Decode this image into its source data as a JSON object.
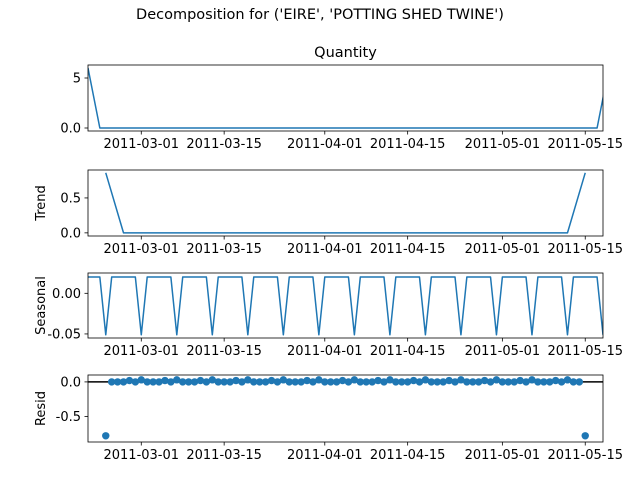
{
  "suptitle": "Decomposition for ('EIRE', 'POTTING SHED TWINE')",
  "colors": {
    "line": "#1f77b4",
    "axis": "#000000",
    "zero_line": "#000000"
  },
  "chart_data": [
    {
      "type": "line",
      "title": "Quantity",
      "ylabel": "",
      "x_dates": {
        "start": "2011-02-20",
        "end": "2011-05-18",
        "interval_days": 2
      },
      "xlim": [
        "2011-02-20",
        "2011-05-18"
      ],
      "ylim": [
        -0.3,
        6.3
      ],
      "yticks": [
        0,
        5
      ],
      "xticks": [
        "2011-03-01",
        "2011-03-15",
        "2011-04-01",
        "2011-04-15",
        "2011-05-01",
        "2011-05-15"
      ],
      "series": [
        {
          "values": [
            6,
            0,
            0,
            0,
            0,
            0,
            0,
            0,
            0,
            0,
            0,
            0,
            0,
            0,
            0,
            0,
            0,
            0,
            0,
            0,
            0,
            0,
            0,
            0,
            0,
            0,
            0,
            0,
            0,
            0,
            0,
            0,
            0,
            0,
            0,
            0,
            0,
            0,
            0,
            0,
            0,
            0,
            0,
            0,
            6
          ]
        }
      ]
    },
    {
      "type": "line",
      "title": "",
      "ylabel": "Trend",
      "x_dates": {
        "start": "2011-02-23",
        "end": "2011-05-15",
        "interval_days": 3
      },
      "xlim": [
        "2011-02-20",
        "2011-05-18"
      ],
      "ylim": [
        -0.045,
        0.9
      ],
      "yticks": [
        0.0,
        0.5
      ],
      "xticks": [
        "2011-03-01",
        "2011-03-15",
        "2011-04-01",
        "2011-04-15",
        "2011-05-01",
        "2011-05-15"
      ],
      "series": [
        {
          "values": [
            0.86,
            0,
            0,
            0,
            0,
            0,
            0,
            0,
            0,
            0,
            0,
            0,
            0,
            0,
            0,
            0,
            0,
            0,
            0,
            0,
            0,
            0,
            0,
            0,
            0,
            0,
            0,
            0.86
          ]
        }
      ]
    },
    {
      "type": "line",
      "title": "",
      "ylabel": "Seasonal",
      "x_dates": {
        "start": "2011-02-20",
        "end": "2011-05-18",
        "interval_days": 1
      },
      "xlim": [
        "2011-02-20",
        "2011-05-18"
      ],
      "ylim": [
        -0.055,
        0.025
      ],
      "yticks": [
        0.0,
        -0.05
      ],
      "xticks": [
        "2011-03-01",
        "2011-03-15",
        "2011-04-01",
        "2011-04-15",
        "2011-05-01",
        "2011-05-15"
      ],
      "pattern": [
        0.02,
        0.02,
        0.02,
        -0.051,
        0.02,
        0.02
      ],
      "series": [
        {
          "name": "",
          "values": []
        }
      ]
    },
    {
      "type": "scatter",
      "title": "",
      "ylabel": "Resid",
      "x_dates": {
        "start": "2011-02-23",
        "end": "2011-05-15",
        "interval_days": 1
      },
      "xlim": [
        "2011-02-20",
        "2011-05-18"
      ],
      "ylim": [
        -0.87,
        0.1
      ],
      "yticks": [
        0.0,
        -0.5
      ],
      "zero_line": true,
      "xticks": [
        "2011-03-01",
        "2011-03-15",
        "2011-04-01",
        "2011-04-15",
        "2011-05-01",
        "2011-05-15"
      ],
      "pattern": [
        0.03,
        0.0,
        0.0,
        0.0,
        0.02,
        0.0
      ],
      "first_value": -0.78,
      "last_value": -0.78,
      "series": [
        {
          "values": []
        }
      ]
    }
  ]
}
